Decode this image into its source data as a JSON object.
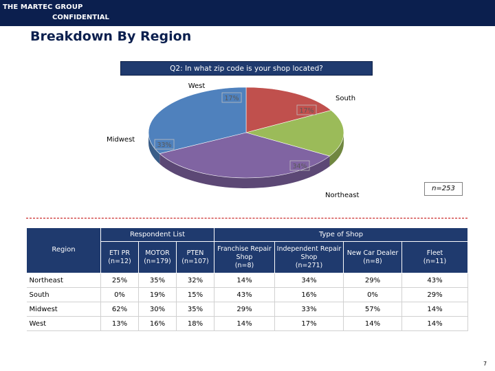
{
  "header": {
    "company": "THE MARTEC GROUP",
    "confidential": "CONFIDENTIAL",
    "page_title": "Breakdown By Region",
    "colors": {
      "navy": "#0b1f4e",
      "table_header": "#1f3a6e"
    }
  },
  "chart_data": {
    "type": "pie",
    "title": "Q2: In what zip code is your shop located?",
    "slices": [
      {
        "label": "West",
        "value": 17,
        "value_label": "17%",
        "color": "#c0504d"
      },
      {
        "label": "South",
        "value": 17,
        "value_label": "17%",
        "color": "#9bbb59"
      },
      {
        "label": "Northeast",
        "value": 34,
        "value_label": "34%",
        "color": "#8064a2"
      },
      {
        "label": "Midwest",
        "value": 33,
        "value_label": "33%",
        "color": "#4f81bd"
      }
    ],
    "sample_size": "n=253"
  },
  "table": {
    "group_headers": {
      "respondent_list": "Respondent List",
      "type_of_shop": "Type of Shop"
    },
    "region_header": "Region",
    "columns": [
      {
        "name": "ETI PR",
        "n": "(n=12)"
      },
      {
        "name": "MOTOR",
        "n": "(n=179)"
      },
      {
        "name": "PTEN",
        "n": "(n=107)"
      },
      {
        "name": "Franchise Repair Shop",
        "n": "(n=8)"
      },
      {
        "name": "Independent Repair Shop",
        "n": "(n=271)"
      },
      {
        "name": "New Car Dealer",
        "n": "(n=8)"
      },
      {
        "name": "Fleet",
        "n": "(n=11)"
      }
    ],
    "rows": [
      {
        "region": "Northeast",
        "values": [
          "25%",
          "35%",
          "32%",
          "14%",
          "34%",
          "29%",
          "43%"
        ]
      },
      {
        "region": "South",
        "values": [
          "0%",
          "19%",
          "15%",
          "43%",
          "16%",
          "0%",
          "29%"
        ]
      },
      {
        "region": "Midwest",
        "values": [
          "62%",
          "30%",
          "35%",
          "29%",
          "33%",
          "57%",
          "14%"
        ]
      },
      {
        "region": "West",
        "values": [
          "13%",
          "16%",
          "18%",
          "14%",
          "17%",
          "14%",
          "14%"
        ]
      }
    ]
  },
  "footer": {
    "page_number": "7"
  }
}
